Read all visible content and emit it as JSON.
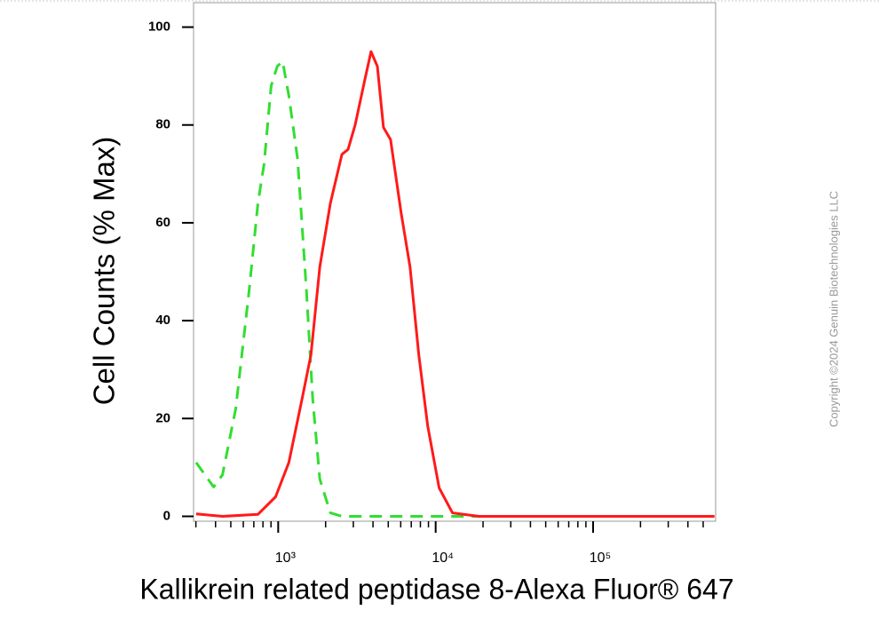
{
  "chart_data": {
    "type": "line",
    "x_label": "Kallikrein related peptidase 8-Alexa Fluor® 647",
    "y_label": "Cell Counts (% Max)",
    "watermark": "Copyright ©2024 Genuin Biotechnologies LLC",
    "log_x": true,
    "xlim": [
      290,
      600000
    ],
    "ylim": [
      -1,
      105
    ],
    "xticks": [
      {
        "value": 1000,
        "label": "10³"
      },
      {
        "value": 10000,
        "label": "10⁴"
      },
      {
        "value": 100000,
        "label": "10⁵"
      }
    ],
    "xminorticks": [
      300,
      400,
      500,
      600,
      700,
      800,
      900,
      2000,
      3000,
      4000,
      5000,
      6000,
      7000,
      8000,
      9000,
      20000,
      30000,
      40000,
      50000,
      60000,
      70000,
      80000,
      90000,
      200000,
      300000,
      400000,
      500000
    ],
    "yticks": [
      0,
      20,
      40,
      60,
      80,
      100
    ],
    "series": [
      {
        "color": "#ff1a1a",
        "dashed": false,
        "x": [
          301,
          443,
          743,
          962,
          1168,
          1418,
          1613,
          1837,
          2145,
          2538,
          2778,
          3080,
          3507,
          3887,
          4260,
          4660,
          5170,
          6036,
          6870,
          7820,
          8900,
          10520,
          12780,
          18870,
          590000
        ],
        "values": [
          0.5,
          0,
          0.4,
          4,
          11,
          24,
          33,
          51,
          64,
          74,
          75,
          80,
          88.5,
          95,
          92,
          79.5,
          77,
          62,
          51,
          33,
          18.5,
          5.8,
          0.7,
          0,
          0
        ]
      },
      {
        "color": "#33dd33",
        "dashed": true,
        "x": [
          301,
          389,
          443,
          537,
          653,
          743,
          813,
          902,
          987,
          1067,
          1168,
          1329,
          1513,
          1656,
          1837,
          2145,
          2538,
          5885,
          590000
        ],
        "values": [
          11,
          6,
          8.5,
          22,
          46,
          64,
          72,
          88,
          92,
          93,
          86,
          73,
          46,
          24,
          7.6,
          0.7,
          0,
          0,
          0
        ]
      }
    ]
  }
}
